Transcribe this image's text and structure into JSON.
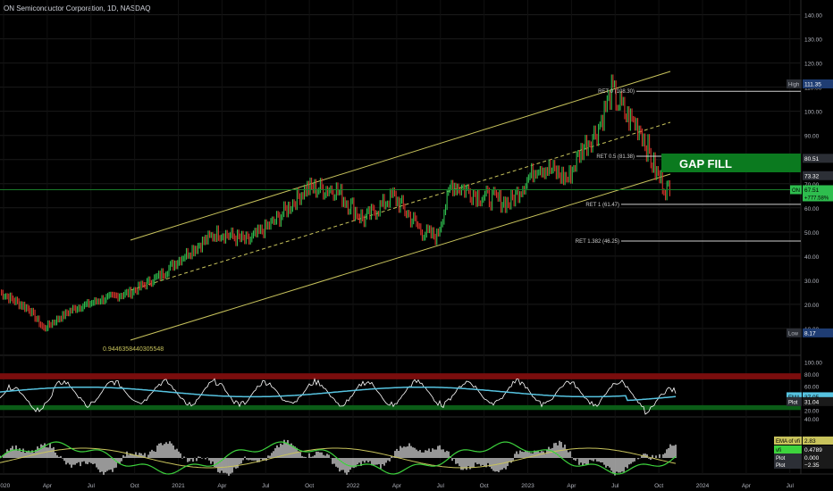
{
  "header": {
    "symbol_title": "ON Semiconductor Corporation, 1D, NASDAQ"
  },
  "chart_data": {
    "type": "line",
    "main_panel": {
      "yticks": [
        10,
        20,
        30,
        40,
        50,
        60,
        70,
        80,
        90,
        100,
        110,
        120,
        130,
        140
      ],
      "y_tick_labels": [
        "10.00",
        "20.00",
        "30.00",
        "40.00",
        "50.00",
        "60.00",
        "70.00",
        "80.00",
        "90.00",
        "100.00",
        "110.00",
        "120.00",
        "130.00",
        "140.00"
      ],
      "series": [
        {
          "name": "ON",
          "x": [
            "2020-01",
            "2020-03",
            "2020-04",
            "2020-06",
            "2020-08",
            "2020-10",
            "2020-12",
            "2021-02",
            "2021-04",
            "2021-06",
            "2021-08",
            "2021-10",
            "2021-12",
            "2022-02",
            "2022-04",
            "2022-06",
            "2022-07",
            "2022-08",
            "2022-10",
            "2022-12",
            "2023-02",
            "2023-04",
            "2023-05",
            "2023-06",
            "2023-07",
            "2023-08",
            "2023-09",
            "2023-10",
            "2023-11"
          ],
          "values": [
            25,
            18,
            10,
            18,
            22,
            25,
            32,
            42,
            50,
            46,
            55,
            68,
            68,
            55,
            65,
            50,
            48,
            70,
            65,
            62,
            78,
            72,
            85,
            92,
            108,
            98,
            93,
            75,
            66
          ]
        }
      ],
      "markers": [
        {
          "label": "High",
          "value_label": "111.35",
          "value": 111.35
        },
        {
          "label": "Low",
          "value_label": "8.17",
          "value": 8.17
        },
        {
          "label": "",
          "value_label": "80.51",
          "value": 80.51
        },
        {
          "label": "",
          "value_label": "73.32",
          "value": 73.32
        },
        {
          "label": "ON",
          "value_label": "67.51",
          "sub_label": "+777.58%",
          "value": 67.51
        }
      ],
      "fib_levels": [
        {
          "label": "RET 0 (108.30)",
          "value": 108.3
        },
        {
          "label": "RET 0.5 (81.38)",
          "value": 81.38
        },
        {
          "label": "RET 1 (61.47)",
          "value": 61.47
        },
        {
          "label": "RET 1.382 (46.25)",
          "value": 46.25
        }
      ],
      "gap_fill_label": "GAP FILL",
      "channel_annotation": "0.9446358440305548"
    },
    "rsi_panel": {
      "yticks": [
        20,
        40,
        60,
        80,
        100
      ],
      "y_tick_labels": [
        "20.00",
        "40.00",
        "60.00",
        "80.00",
        "100.00"
      ],
      "markers": [
        {
          "label": "EMA",
          "value_label": "37.05"
        },
        {
          "label": "Plot",
          "value_label": "31.04"
        }
      ]
    },
    "flow_panel": {
      "yticks": [
        40
      ],
      "y_tick_labels": [
        "40.00"
      ],
      "markers": [
        {
          "label": "EMA of vfi",
          "value_label": "2.83"
        },
        {
          "label": "vfi",
          "value_label": "0.4789"
        },
        {
          "label": "Plot",
          "value_label": "0.000"
        },
        {
          "label": "Plot",
          "value_label": "−2.35"
        }
      ]
    },
    "x_tick_labels": [
      "2020",
      "Apr",
      "Jul",
      "Oct",
      "2021",
      "Apr",
      "Jul",
      "Oct",
      "2022",
      "Apr",
      "Jul",
      "Oct",
      "2023",
      "Apr",
      "Jul",
      "Oct",
      "2024",
      "Apr",
      "Jul"
    ]
  },
  "colors": {
    "background": "#000000",
    "grid": "#1a1a1a",
    "channel": "#c8c35c",
    "gap_fill": "#0b7a1f",
    "price_up": "#2ebd4e",
    "price_down": "#d9342b",
    "rsi": "#ffffff",
    "ema": "#56c3e0",
    "overbought": "#7a0d0d",
    "oversold": "#0b5c17",
    "vfi": "#3dd33d",
    "vfi_ema": "#c8c35c",
    "histogram": "#bdbdbd"
  }
}
